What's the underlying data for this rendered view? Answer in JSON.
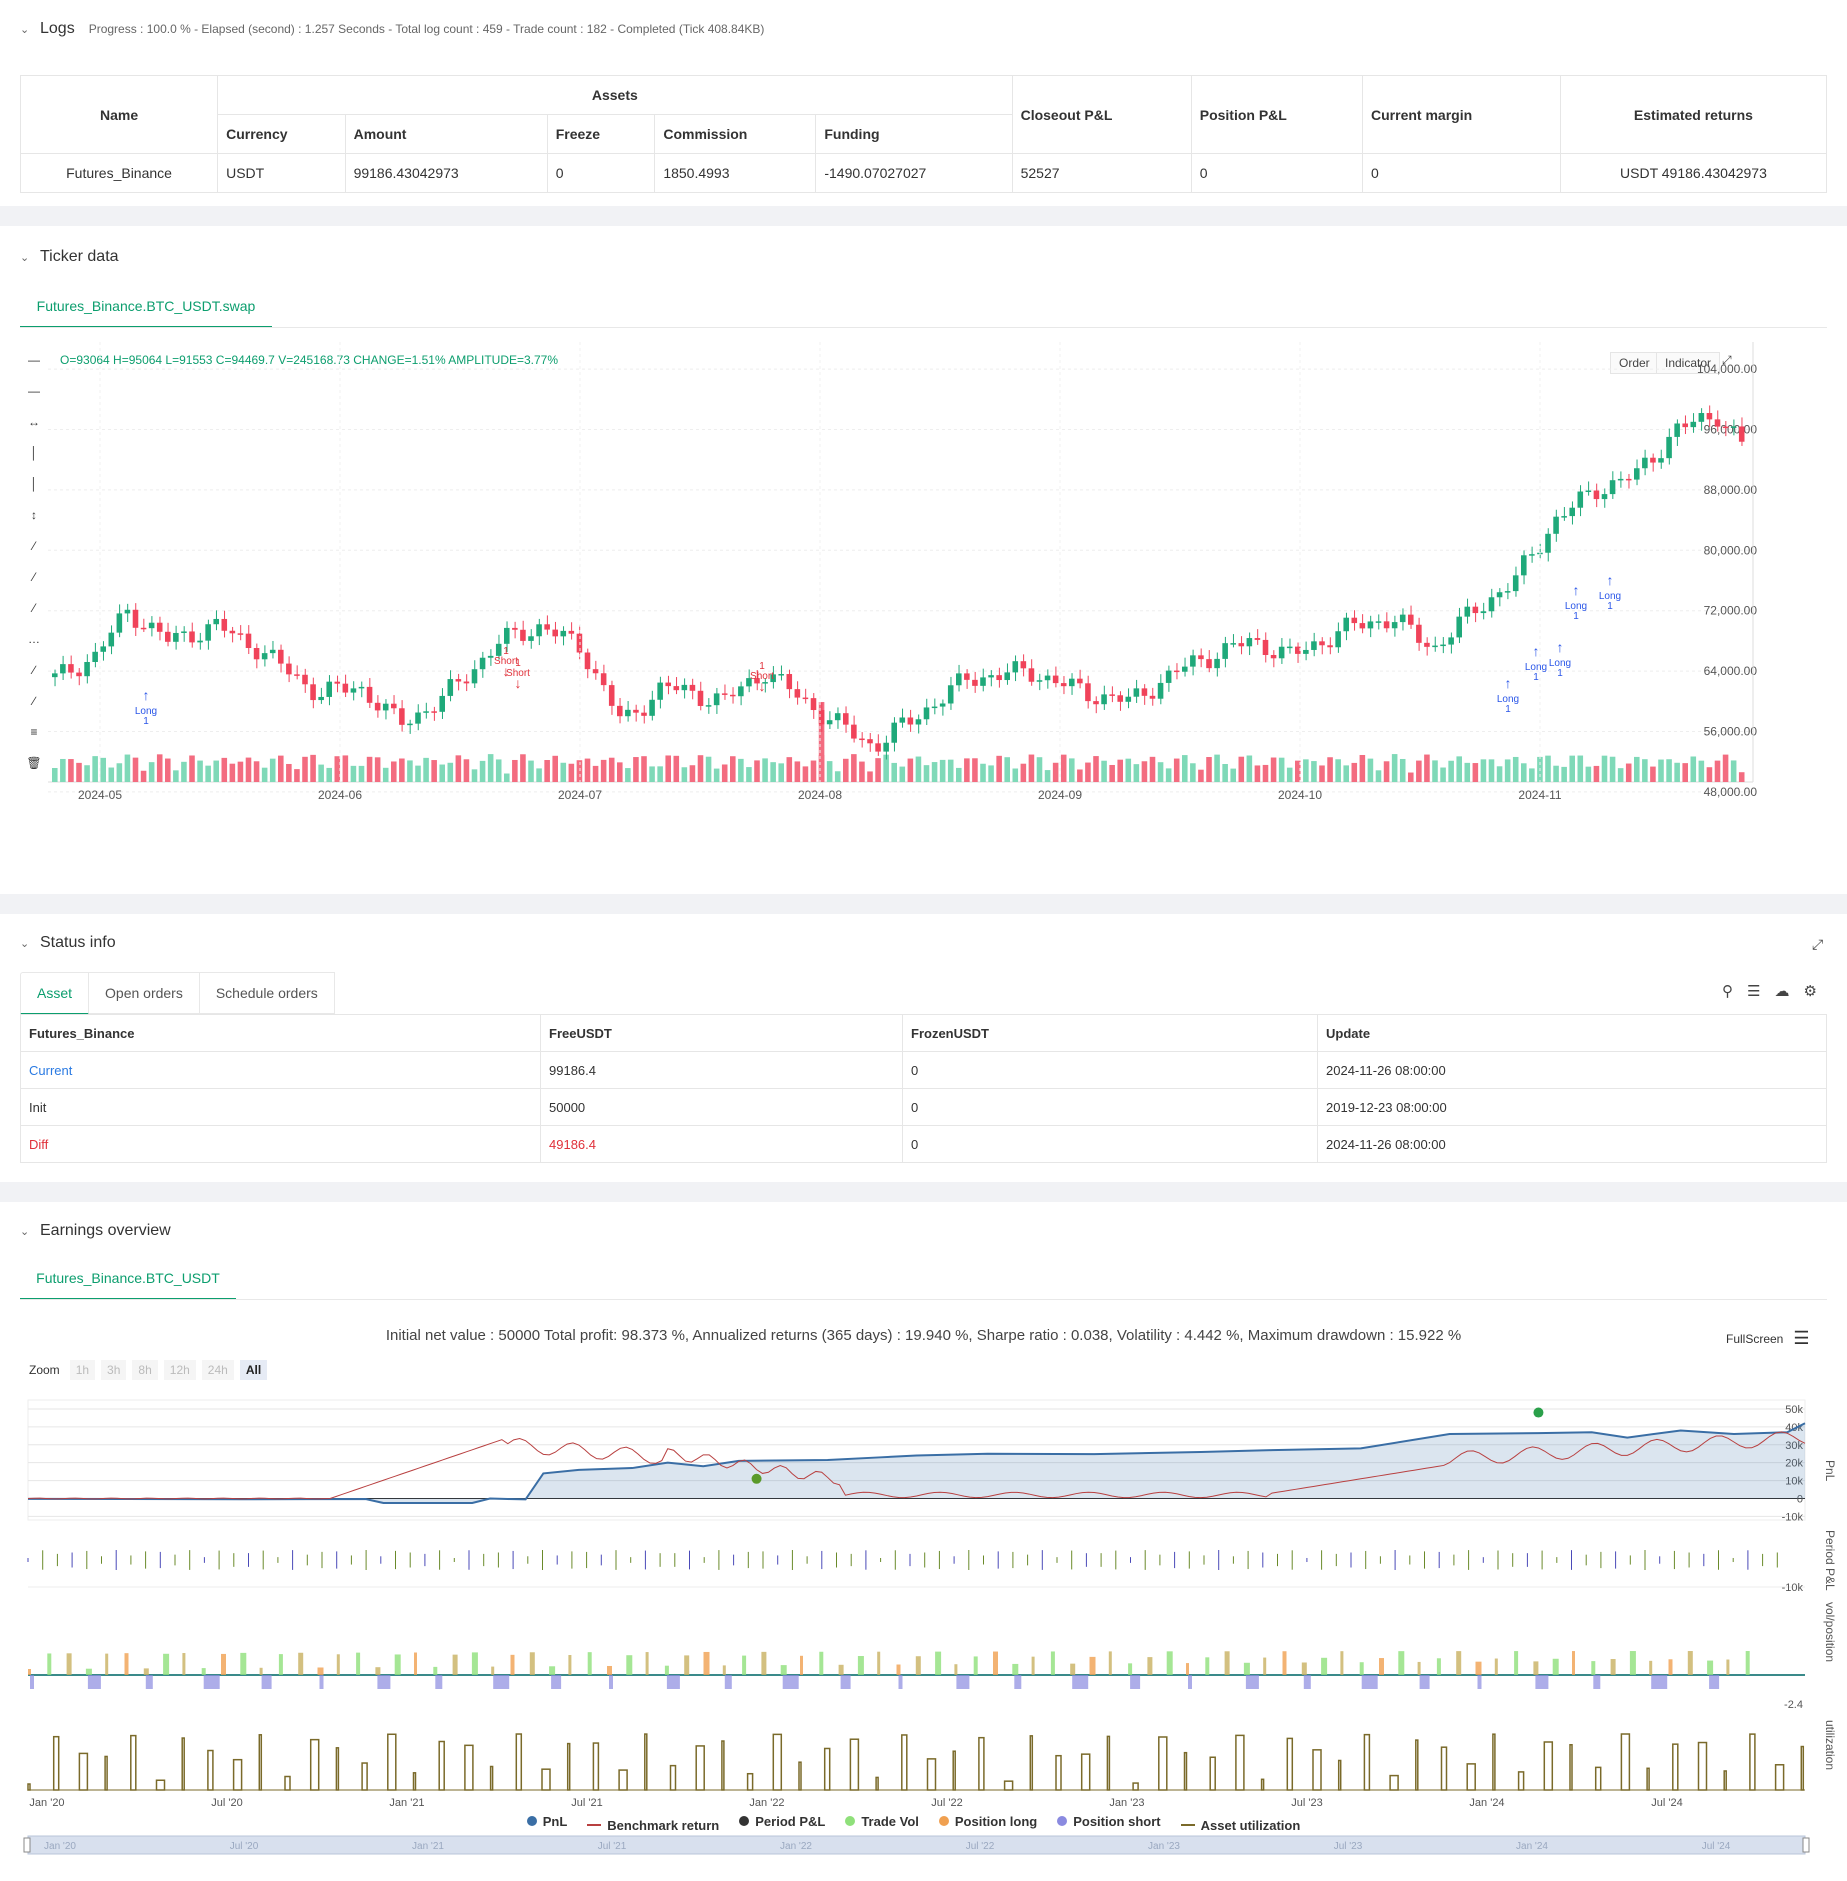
{
  "logs": {
    "title": "Logs",
    "summary": "Progress : 100.0 % - Elapsed (second) : 1.257  Seconds - Total log count : 459 - Trade count : 182 - Completed (Tick 408.84KB)",
    "headers": {
      "name": "Name",
      "assets": "Assets",
      "currency": "Currency",
      "amount": "Amount",
      "freeze": "Freeze",
      "commission": "Commission",
      "funding": "Funding",
      "closeout": "Closeout P&L",
      "position": "Position P&L",
      "margin": "Current margin",
      "est": "Estimated returns"
    },
    "row": {
      "name": "Futures_Binance",
      "currency": "USDT",
      "amount": "99186.43042973",
      "freeze": "0",
      "commission": "1850.4993",
      "funding": "-1490.07027027",
      "closeout": "52527",
      "position": "0",
      "margin": "0",
      "est": "USDT 49186.43042973"
    }
  },
  "ticker": {
    "title": "Ticker data",
    "tab": "Futures_Binance.BTC_USDT.swap",
    "ohlc": "O=93064 H=95064 L=91553 C=94469.7 V=245168.73 CHANGE=1.51% AMPLITUDE=3.77%",
    "order_btn": "Order",
    "indicator_btn": "Indicator",
    "y_ticks": [
      "104,000.00",
      "96,000.00",
      "88,000.00",
      "80,000.00",
      "72,000.00",
      "64,000.00",
      "56,000.00",
      "48,000.00"
    ],
    "x_ticks": [
      "2024-05",
      "2024-06",
      "2024-07",
      "2024-08",
      "2024-09",
      "2024-10",
      "2024-11"
    ],
    "markers": [
      {
        "label": "Long",
        "qty": "1"
      },
      {
        "label": "Short",
        "qty": "1"
      },
      {
        "label": "Short",
        "qty": "1"
      },
      {
        "label": "Short",
        "qty": "1"
      },
      {
        "label": "Long",
        "qty": "1"
      },
      {
        "label": "Long",
        "qty": "1"
      },
      {
        "label": "Long",
        "qty": "1"
      },
      {
        "label": "Long",
        "qty": "1"
      },
      {
        "label": "Long",
        "qty": "1"
      }
    ]
  },
  "status": {
    "title": "Status info",
    "tabs": [
      "Asset",
      "Open orders",
      "Schedule orders"
    ],
    "headers": [
      "Futures_Binance",
      "FreeUSDT",
      "FrozenUSDT",
      "Update"
    ],
    "rows": [
      {
        "label": "Current",
        "free": "99186.4",
        "frozen": "0",
        "update": "2024-11-26 08:00:00"
      },
      {
        "label": "Init",
        "free": "50000",
        "frozen": "0",
        "update": "2019-12-23 08:00:00"
      },
      {
        "label": "Diff",
        "free": "49186.4",
        "frozen": "0",
        "update": "2024-11-26 08:00:00"
      }
    ]
  },
  "earnings": {
    "title": "Earnings overview",
    "tab": "Futures_Binance.BTC_USDT",
    "summary": "Initial net value : 50000 Total profit: 98.373 %, Annualized returns (365 days) : 19.940 %, Sharpe ratio : 0.038, Volatility : 4.442 %, Maximum drawdown : 15.922 %",
    "fullscreen": "FullScreen",
    "zoom_label": "Zoom",
    "zoom_buttons": [
      "1h",
      "3h",
      "8h",
      "12h",
      "24h",
      "All"
    ],
    "pnl_ticks": [
      "50k",
      "40k",
      "30k",
      "20k",
      "10k",
      "0",
      "-10k"
    ],
    "period_tick": "-10k",
    "vol_tick": "-2.4",
    "axis_pnl": "PnL",
    "axis_period": "Period P&L",
    "axis_vol": "vol/position",
    "axis_util": "utilization",
    "x_ticks": [
      "Jan '20",
      "Jul '20",
      "Jan '21",
      "Jul '21",
      "Jan '22",
      "Jul '22",
      "Jan '23",
      "Jul '23",
      "Jan '24",
      "Jul '24"
    ],
    "legend": [
      {
        "label": "PnL",
        "color": "#3a6ea5"
      },
      {
        "label": "Benchmark return",
        "color": "#b84040"
      },
      {
        "label": "Period P&L",
        "color": "#333333"
      },
      {
        "label": "Trade Vol",
        "color": "#8fe07a"
      },
      {
        "label": "Position long",
        "color": "#f0a050"
      },
      {
        "label": "Position short",
        "color": "#8a8ae0"
      },
      {
        "label": "Asset utilization",
        "color": "#7a6a2a"
      }
    ]
  }
}
